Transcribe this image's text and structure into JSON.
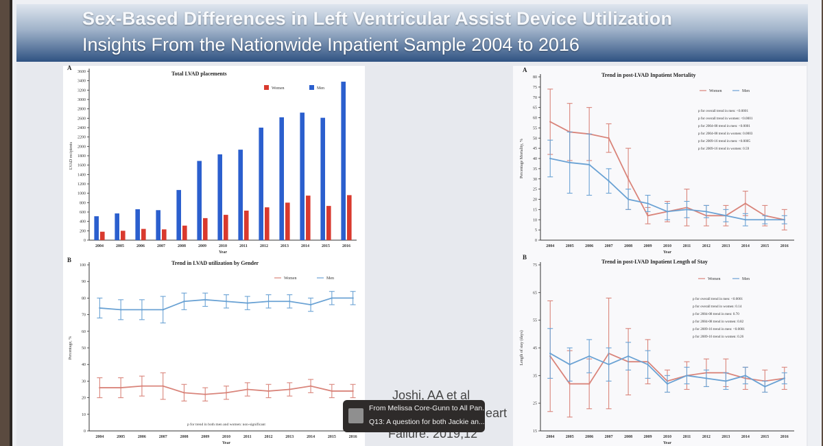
{
  "slide": {
    "title_line1": "Sex-Based Differences in Left Ventricular Assist Device Utilization",
    "title_line2": "Insights From the Nationwide Inpatient Sample 2004 to 2016",
    "citation_line1": "Joshi, AA et al",
    "citation_word_right": "eart",
    "citation_line2": "Failure. 2019;12"
  },
  "notification": {
    "from": "From Melissa Core-Gunn to All Pan...",
    "message": "Q13: A question for both Jackie an..."
  },
  "colors": {
    "women": "#d93a2e",
    "men": "#2b5fce",
    "women_line": "#d9847a",
    "men_line": "#6aa2d4"
  },
  "chart_data": [
    {
      "id": "lvad-placements",
      "panel_letter": "A",
      "type": "bar",
      "title": "Total LVAD placements",
      "xlabel": "Year",
      "ylabel": "LVAD recipients",
      "ylim": [
        0,
        3600
      ],
      "yticks": [
        "0",
        "200",
        "400",
        "600",
        "800",
        "1000",
        "1200",
        "1400",
        "1600",
        "1800",
        "2000",
        "2200",
        "2400",
        "2600",
        "2800",
        "3000",
        "3200",
        "3400",
        "3600"
      ],
      "categories": [
        "2004",
        "2005",
        "2006",
        "2007",
        "2008",
        "2009",
        "2010",
        "2011",
        "2012",
        "2013",
        "2014",
        "2015",
        "2016"
      ],
      "series": [
        {
          "name": "Women",
          "color": "#d93a2e",
          "values": [
            180,
            200,
            240,
            230,
            310,
            470,
            540,
            630,
            700,
            800,
            950,
            730,
            960
          ]
        },
        {
          "name": "Men",
          "color": "#2b5fce",
          "values": [
            510,
            570,
            660,
            640,
            1070,
            1690,
            1830,
            1930,
            2400,
            2620,
            2720,
            2610,
            3380
          ]
        }
      ]
    },
    {
      "id": "lvad-utilization",
      "panel_letter": "B",
      "type": "line",
      "title": "Trend in LVAD utilization by Gender",
      "xlabel": "Year",
      "ylabel": "Percentage, %",
      "ylim": [
        0,
        100
      ],
      "yticks": [
        "0",
        "10",
        "20",
        "30",
        "40",
        "50",
        "60",
        "70",
        "80",
        "90",
        "100"
      ],
      "categories": [
        "2004",
        "2005",
        "2006",
        "2007",
        "2008",
        "2009",
        "2010",
        "2011",
        "2012",
        "2013",
        "2014",
        "2015",
        "2016"
      ],
      "series": [
        {
          "name": "Women",
          "color": "#d9847a",
          "values": [
            26,
            26,
            27,
            27,
            23,
            22,
            23,
            25,
            24,
            25,
            27,
            24,
            24
          ],
          "err": [
            6,
            6,
            6,
            8,
            5,
            4,
            4,
            4,
            4,
            4,
            4,
            4,
            4
          ]
        },
        {
          "name": "Men",
          "color": "#6aa2d4",
          "values": [
            74,
            73,
            73,
            73,
            78,
            79,
            78,
            77,
            78,
            78,
            76,
            80,
            80
          ],
          "err": [
            6,
            6,
            6,
            8,
            5,
            4,
            4,
            4,
            4,
            4,
            4,
            4,
            4
          ]
        }
      ],
      "annotation": "p for trend in both men and women: non-significant"
    },
    {
      "id": "inpatient-mortality",
      "panel_letter": "A",
      "type": "line",
      "title": "Trend in post-LVAD Inpatient Mortality",
      "xlabel": "Year",
      "ylabel": "Percentage Mortality, %",
      "ylim": [
        0,
        80
      ],
      "yticks": [
        "0",
        "5",
        "10",
        "15",
        "20",
        "25",
        "30",
        "35",
        "40",
        "45",
        "50",
        "55",
        "60",
        "65",
        "70",
        "75",
        "80"
      ],
      "categories": [
        "2004",
        "2005",
        "2006",
        "2007",
        "2008",
        "2009",
        "2010",
        "2011",
        "2012",
        "2013",
        "2014",
        "2015",
        "2016"
      ],
      "series": [
        {
          "name": "Women",
          "color": "#d9847a",
          "values": [
            58,
            53,
            52,
            50,
            30,
            12,
            14,
            16,
            12,
            12,
            18,
            12,
            10
          ],
          "err": [
            16,
            14,
            13,
            7,
            15,
            4,
            5,
            9,
            5,
            5,
            6,
            5,
            5
          ]
        },
        {
          "name": "Men",
          "color": "#6aa2d4",
          "values": [
            40,
            38,
            37,
            29,
            20,
            18,
            14,
            15,
            14,
            12,
            10,
            10,
            10
          ],
          "err": [
            9,
            15,
            15,
            6,
            5,
            4,
            4,
            4,
            3,
            3,
            3,
            2,
            2
          ]
        }
      ],
      "annotations": [
        "p for overall trend in men: <0.0001",
        "p for overall trend in women: <0.0001",
        "p for 2004-08 trend in men: <0.0001",
        "p for 2004-08 trend in women: 0.0003",
        "p for 2009-16 trend in men: <0.0005",
        "p for 2009-16 trend in women: 0.59"
      ]
    },
    {
      "id": "length-of-stay",
      "panel_letter": "B",
      "type": "line",
      "title": "Trend in post-LVAD Inpatient Length of Stay",
      "xlabel": "Year",
      "ylabel": "Length of stay (days)",
      "ylim": [
        15,
        75
      ],
      "yticks": [
        "15",
        "25",
        "35",
        "45",
        "55",
        "65",
        "75"
      ],
      "categories": [
        "2004",
        "2005",
        "2006",
        "2007",
        "2008",
        "2009",
        "2010",
        "2011",
        "2012",
        "2013",
        "2014",
        "2015",
        "2016"
      ],
      "series": [
        {
          "name": "Women",
          "color": "#d9847a",
          "values": [
            42,
            32,
            32,
            43,
            40,
            40,
            33,
            35,
            36,
            36,
            34,
            33,
            34
          ],
          "err": [
            20,
            12,
            9,
            20,
            12,
            8,
            4,
            5,
            5,
            5,
            4,
            4,
            4
          ]
        },
        {
          "name": "Men",
          "color": "#6aa2d4",
          "values": [
            43,
            39,
            42,
            39,
            42,
            39,
            32,
            35,
            34,
            33,
            35,
            31,
            34
          ],
          "err": [
            9,
            6,
            6,
            6,
            5,
            5,
            3,
            3,
            3,
            3,
            3,
            2,
            2
          ]
        }
      ],
      "annotations": [
        "p for overall trend in men: <0.0001",
        "p for overall trend in women: 0.14",
        "p for 2004-08 trend in men: 0.70",
        "p for 2004-08 trend in women: 0.82",
        "p for 2009-16 trend in men: <0.0001",
        "p for 2009-16 trend in women: 0.26"
      ]
    }
  ]
}
